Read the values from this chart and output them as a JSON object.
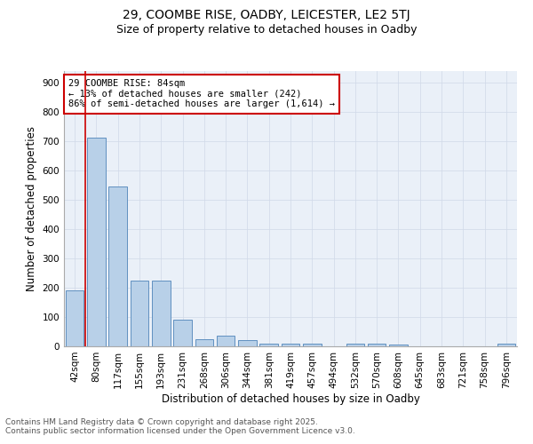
{
  "title_line1": "29, COOMBE RISE, OADBY, LEICESTER, LE2 5TJ",
  "title_line2": "Size of property relative to detached houses in Oadby",
  "xlabel": "Distribution of detached houses by size in Oadby",
  "ylabel": "Number of detached properties",
  "categories": [
    "42sqm",
    "80sqm",
    "117sqm",
    "155sqm",
    "193sqm",
    "231sqm",
    "268sqm",
    "306sqm",
    "344sqm",
    "381sqm",
    "419sqm",
    "457sqm",
    "494sqm",
    "532sqm",
    "570sqm",
    "608sqm",
    "645sqm",
    "683sqm",
    "721sqm",
    "758sqm",
    "796sqm"
  ],
  "values": [
    190,
    713,
    545,
    225,
    225,
    90,
    25,
    37,
    22,
    10,
    10,
    10,
    0,
    8,
    10,
    5,
    0,
    0,
    0,
    0,
    8
  ],
  "bar_color": "#b8d0e8",
  "bar_edge_color": "#6090c0",
  "grid_color": "#d0d8e8",
  "background_color": "#eaf0f8",
  "vline_x": 0.5,
  "vline_color": "#cc0000",
  "annotation_text": "29 COOMBE RISE: 84sqm\n← 13% of detached houses are smaller (242)\n86% of semi-detached houses are larger (1,614) →",
  "annotation_box_color": "#cc0000",
  "ylim": [
    0,
    940
  ],
  "yticks": [
    0,
    100,
    200,
    300,
    400,
    500,
    600,
    700,
    800,
    900
  ],
  "footer_line1": "Contains HM Land Registry data © Crown copyright and database right 2025.",
  "footer_line2": "Contains public sector information licensed under the Open Government Licence v3.0.",
  "title_fontsize": 10,
  "subtitle_fontsize": 9,
  "axis_label_fontsize": 8.5,
  "tick_fontsize": 7.5,
  "annotation_fontsize": 7.5,
  "footer_fontsize": 6.5
}
